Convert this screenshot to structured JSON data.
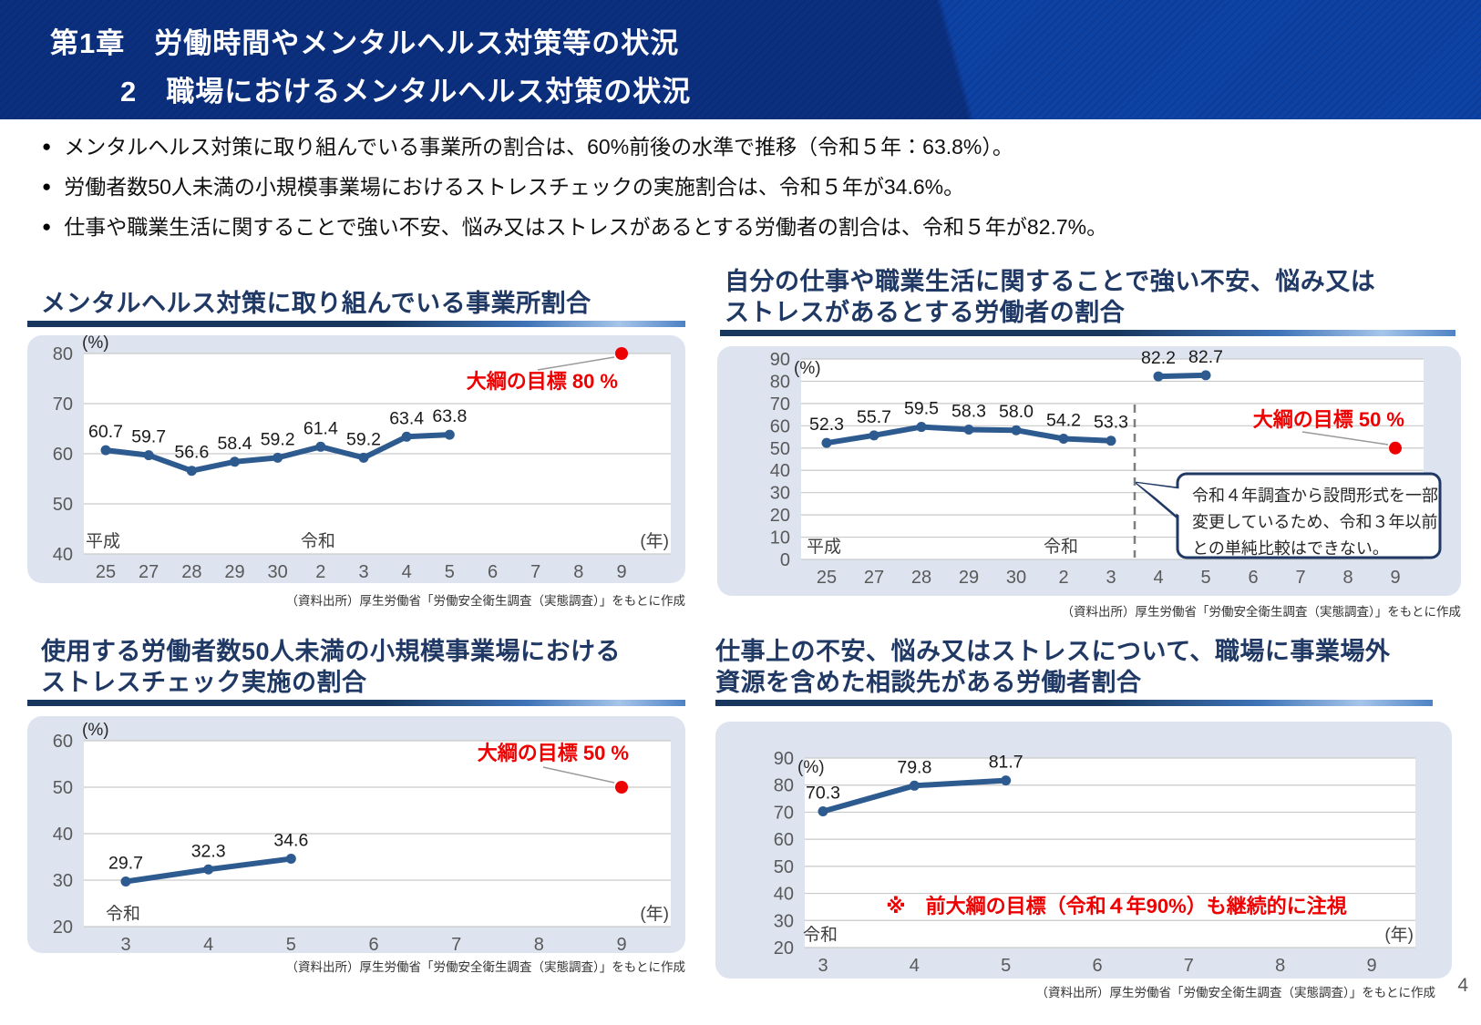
{
  "header": {
    "line1": "第1章　労働時間やメンタルヘルス対策等の状況",
    "line2": "2　職場におけるメンタルヘルス対策の状況"
  },
  "bullets": [
    "メンタルヘルス対策に取り組んでいる事業所の割合は、60%前後の水準で推移（令和５年：63.8%）。",
    "労働者数50人未満の小規模事業場におけるストレスチェックの実施割合は、令和５年が34.6%。",
    "仕事や職業生活に関することで強い不安、悩み又はストレスがあるとする労働者の割合は、令和５年が82.7%。"
  ],
  "colors": {
    "header_bg_left": "#0c3080",
    "header_bg_right": "#0e43a6",
    "title_navy": "#1f3864",
    "panel_bg": "#dde4f0",
    "series_blue": "#2e5b8f",
    "grid_gray": "#c9c9c9",
    "tick_gray": "#595959",
    "target_red": "#ee0000",
    "callout_border": "#1f3864"
  },
  "charts": [
    {
      "title_lines": [
        "メンタルヘルス対策に取り組んでいる事業所割合"
      ],
      "source": "（資料出所）厚生労働省「労働安全衛生調査（実態調査）」をもとに作成"
    },
    {
      "title_lines": [
        "自分の仕事や職業生活に関することで強い不安、悩み又は",
        "ストレスがあるとする労働者の割合"
      ],
      "source": "（資料出所）厚生労働省「労働安全衛生調査（実態調査）」をもとに作成"
    },
    {
      "title_lines": [
        "使用する労働者数50人未満の小規模事業場における",
        "ストレスチェック実施の割合"
      ],
      "source": "（資料出所）厚生労働省「労働安全衛生調査（実態調査）」をもとに作成"
    },
    {
      "title_lines": [
        "仕事上の不安、悩み又はストレスについて、職場に事業場外",
        "資源を含めた相談先がある労働者割合"
      ],
      "source": "（資料出所）厚生労働省「労働安全衛生調査（実態調査）」をもとに作成"
    }
  ],
  "chart_data": [
    {
      "type": "line",
      "title": "メンタルヘルス対策に取り組んでいる事業所割合",
      "unit": "(%)",
      "year_unit": "(年)",
      "ylim": [
        40,
        80
      ],
      "yticks": [
        40,
        50,
        60,
        70,
        80
      ],
      "grid": true,
      "categories": [
        "25",
        "27",
        "28",
        "29",
        "30",
        "2",
        "3",
        "4",
        "5",
        "6",
        "7",
        "8",
        "9"
      ],
      "era_labels": [
        {
          "text": "平成",
          "index": 0
        },
        {
          "text": "令和",
          "index": 5
        }
      ],
      "segments": [
        {
          "start_index": 0,
          "values": [
            60.7,
            59.7,
            56.6,
            58.4,
            59.2,
            61.4,
            59.2,
            63.4,
            63.8
          ]
        }
      ],
      "series_color": "#2e5b8f",
      "target": {
        "label": "大綱の目標 80 %",
        "value": 80,
        "index": 12,
        "color": "#ee0000"
      }
    },
    {
      "type": "line",
      "title": "自分の仕事や職業生活に関することで強い不安、悩み又はストレスがあるとする労働者の割合",
      "unit": "(%)",
      "year_unit": "(年)",
      "ylim": [
        0,
        90
      ],
      "yticks": [
        0,
        10,
        20,
        30,
        40,
        50,
        60,
        70,
        80,
        90
      ],
      "grid": true,
      "categories": [
        "25",
        "27",
        "28",
        "29",
        "30",
        "2",
        "3",
        "4",
        "5",
        "6",
        "7",
        "8",
        "9"
      ],
      "era_labels": [
        {
          "text": "平成",
          "index": 0
        },
        {
          "text": "令和",
          "index": 5
        }
      ],
      "segments": [
        {
          "start_index": 0,
          "values": [
            52.3,
            55.7,
            59.5,
            58.3,
            58.0,
            54.2,
            53.3
          ]
        },
        {
          "start_index": 7,
          "values": [
            82.2,
            82.7
          ]
        }
      ],
      "series_color": "#2e5b8f",
      "divider_between": [
        6,
        7
      ],
      "callout": {
        "lines": [
          "令和４年調査から設問形式を一部",
          "変更しているため、令和３年以前",
          "との単純比較はできない。"
        ]
      },
      "target": {
        "label": "大綱の目標 50 %",
        "value": 50,
        "index": 12,
        "color": "#ee0000"
      }
    },
    {
      "type": "line",
      "title": "使用する労働者数50人未満の小規模事業場におけるストレスチェック実施の割合",
      "unit": "(%)",
      "year_unit": "(年)",
      "ylim": [
        20,
        60
      ],
      "yticks": [
        20,
        30,
        40,
        50,
        60
      ],
      "grid": true,
      "categories": [
        "3",
        "4",
        "5",
        "6",
        "7",
        "8",
        "9"
      ],
      "era_labels": [
        {
          "text": "令和",
          "index": 0
        }
      ],
      "segments": [
        {
          "start_index": 0,
          "values": [
            29.7,
            32.3,
            34.6
          ]
        }
      ],
      "series_color": "#2e5b8f",
      "target": {
        "label": "大綱の目標 50 %",
        "value": 50,
        "index": 6,
        "color": "#ee0000"
      }
    },
    {
      "type": "line",
      "title": "仕事上の不安、悩み又はストレスについて、職場に事業場外資源を含めた相談先がある労働者割合",
      "unit": "(%)",
      "year_unit": "(年)",
      "ylim": [
        20,
        90
      ],
      "yticks": [
        20,
        30,
        40,
        50,
        60,
        70,
        80,
        90
      ],
      "grid": true,
      "categories": [
        "3",
        "4",
        "5",
        "6",
        "7",
        "8",
        "9"
      ],
      "era_labels": [
        {
          "text": "令和",
          "index": 0
        }
      ],
      "segments": [
        {
          "start_index": 0,
          "values": [
            70.3,
            79.8,
            81.7
          ]
        }
      ],
      "series_color": "#2e5b8f",
      "note": {
        "text": "※　前大綱の目標（令和４年90%）も継続的に注視",
        "color": "#ee0000"
      }
    }
  ],
  "page_number": "4"
}
